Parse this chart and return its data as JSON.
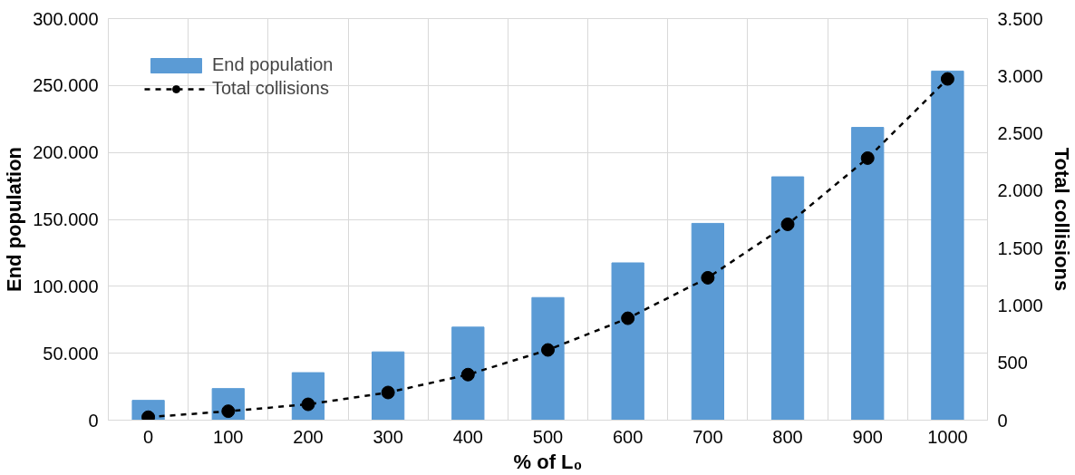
{
  "chart_data": {
    "type": "bar",
    "xlabel": "% of L₀",
    "ylabel": "End population",
    "y2label": "Total collisions",
    "categories": [
      "0",
      "100",
      "200",
      "300",
      "400",
      "500",
      "600",
      "700",
      "800",
      "900",
      "1000"
    ],
    "series": [
      {
        "name": "End population",
        "color": "#5b9bd5",
        "values": [
          14800,
          23600,
          35500,
          51000,
          69500,
          91600,
          117500,
          147000,
          181800,
          218700,
          260800
        ]
      },
      {
        "name": "Total collisions",
        "type": "line",
        "axis": "y2",
        "color": "#000000",
        "marker": "circle",
        "line_style": "dashed",
        "values": [
          26,
          78,
          138,
          241,
          397,
          612,
          888,
          1241,
          1707,
          2284,
          2974
        ]
      }
    ],
    "ylim": [
      0,
      300000
    ],
    "yticks": [
      {
        "value": 0,
        "label": "0"
      },
      {
        "value": 50000,
        "label": "50.000"
      },
      {
        "value": 100000,
        "label": "100.000"
      },
      {
        "value": 150000,
        "label": "150.000"
      },
      {
        "value": 200000,
        "label": "200.000"
      },
      {
        "value": 250000,
        "label": "250.000"
      },
      {
        "value": 300000,
        "label": "300.000"
      }
    ],
    "y2lim": [
      0,
      3500
    ],
    "y2ticks": [
      {
        "value": 0,
        "label": "0"
      },
      {
        "value": 500,
        "label": "500"
      },
      {
        "value": 1000,
        "label": "1.000"
      },
      {
        "value": 1500,
        "label": "1.500"
      },
      {
        "value": 2000,
        "label": "2.000"
      },
      {
        "value": 2500,
        "label": "2.500"
      },
      {
        "value": 3000,
        "label": "3.000"
      },
      {
        "value": 3500,
        "label": "3.500"
      }
    ],
    "grid": true,
    "legend": "top left"
  }
}
